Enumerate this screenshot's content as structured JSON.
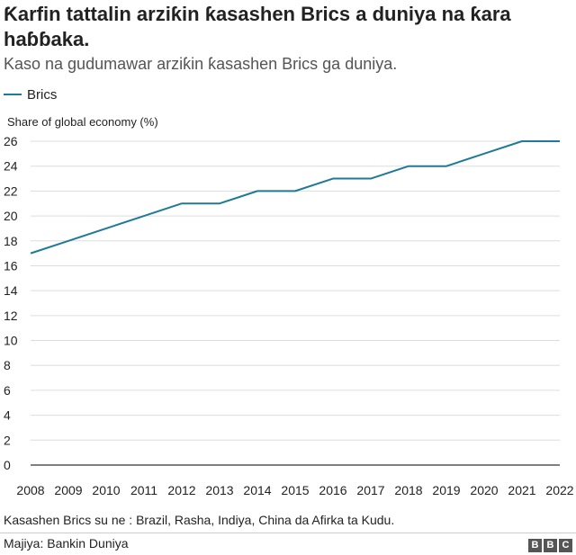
{
  "header": {
    "title": "Ƙarfin tattalin arziƙin ƙasashen Brics a duniya na ƙara haɓɓaka.",
    "subtitle": "Kaso na gudumawar arziƙin ƙasashen Brics ga duniya."
  },
  "footer": {
    "note": "Kasashen Brics su ne : Brazil, Rasha, Indiya, China da Afirka ta Kudu.",
    "source": "Majiya: Bankin Duniya",
    "logo_letters": [
      "B",
      "B",
      "C"
    ]
  },
  "chart_data": {
    "type": "line",
    "title": "Ƙarfin tattalin arziƙin ƙasashen Brics a duniya na ƙara haɓɓaka.",
    "subtitle": "Kaso na gudumawar arziƙin ƙasashen Brics ga duniya.",
    "ylabel": "Share of global economy (%)",
    "xlabel": "",
    "x": [
      2008,
      2009,
      2010,
      2011,
      2012,
      2013,
      2014,
      2015,
      2016,
      2017,
      2018,
      2019,
      2020,
      2021,
      2022
    ],
    "series": [
      {
        "name": "Brics",
        "color": "#1f7a99",
        "values": [
          17,
          18,
          19,
          20,
          21,
          21,
          22,
          22,
          23,
          23,
          24,
          24,
          25,
          26,
          26
        ]
      }
    ],
    "xlim": [
      2008,
      2022
    ],
    "ylim": [
      0,
      26
    ],
    "yticks": [
      0,
      2,
      4,
      6,
      8,
      10,
      12,
      14,
      16,
      18,
      20,
      22,
      24,
      26
    ],
    "grid": true,
    "legend": "top-left"
  }
}
